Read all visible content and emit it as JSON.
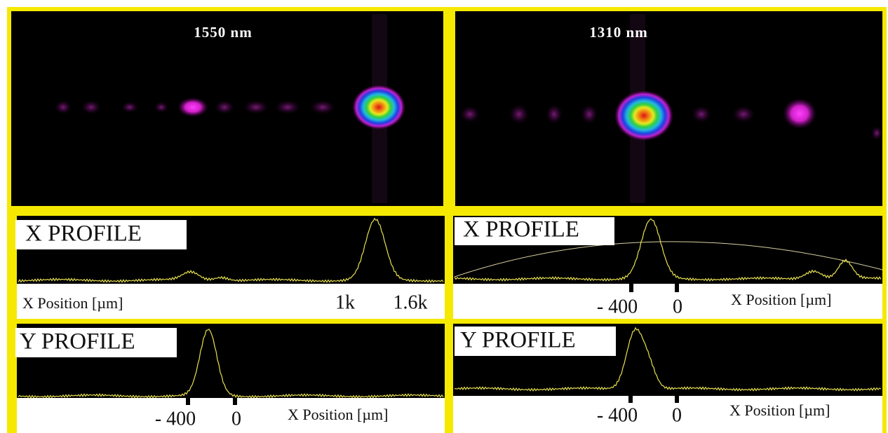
{
  "panels": [
    {
      "label": "1550  nm",
      "x_profile": {
        "title": "X PROFILE",
        "axis_label": "X  Position [µm]",
        "tick_labels": [
          "1k",
          "1.6k"
        ]
      },
      "y_profile": {
        "title": "Y PROFILE",
        "axis_label": "X  Position [µm]",
        "tick_labels": [
          "- 400",
          "0"
        ]
      }
    },
    {
      "label": "1310  nm",
      "x_profile": {
        "title": "X PROFILE",
        "axis_label": "X  Position [µm]",
        "tick_labels": [
          "- 400",
          "0"
        ]
      },
      "y_profile": {
        "title": "Y PROFILE",
        "axis_label": "X  Position [µm]",
        "tick_labels": [
          "- 400",
          "0"
        ]
      }
    }
  ]
}
